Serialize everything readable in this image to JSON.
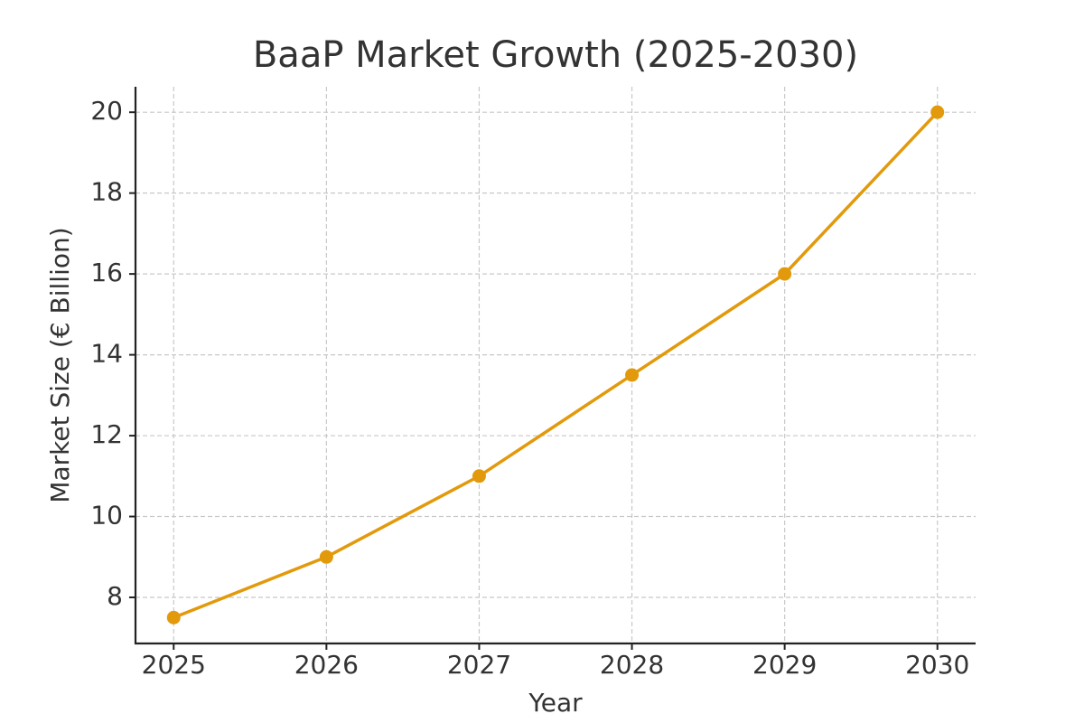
{
  "chart_data": {
    "type": "line",
    "title": "BaaP Market Growth (2025-2030)",
    "x_label": "Year",
    "y_label": "Market Size (€ Billion)",
    "x": [
      2025,
      2026,
      2027,
      2028,
      2029,
      2030
    ],
    "values": [
      7.5,
      9,
      11,
      13.5,
      16,
      20
    ],
    "color": "#e29a0c",
    "xlim": [
      2024.75,
      2030.25
    ],
    "xticks": [
      2025,
      2026,
      2027,
      2028,
      2029,
      2030
    ],
    "ylim": [
      6.86,
      20.63
    ],
    "yticks": [
      8,
      10,
      12,
      14,
      16,
      18,
      20
    ],
    "grid": true
  }
}
